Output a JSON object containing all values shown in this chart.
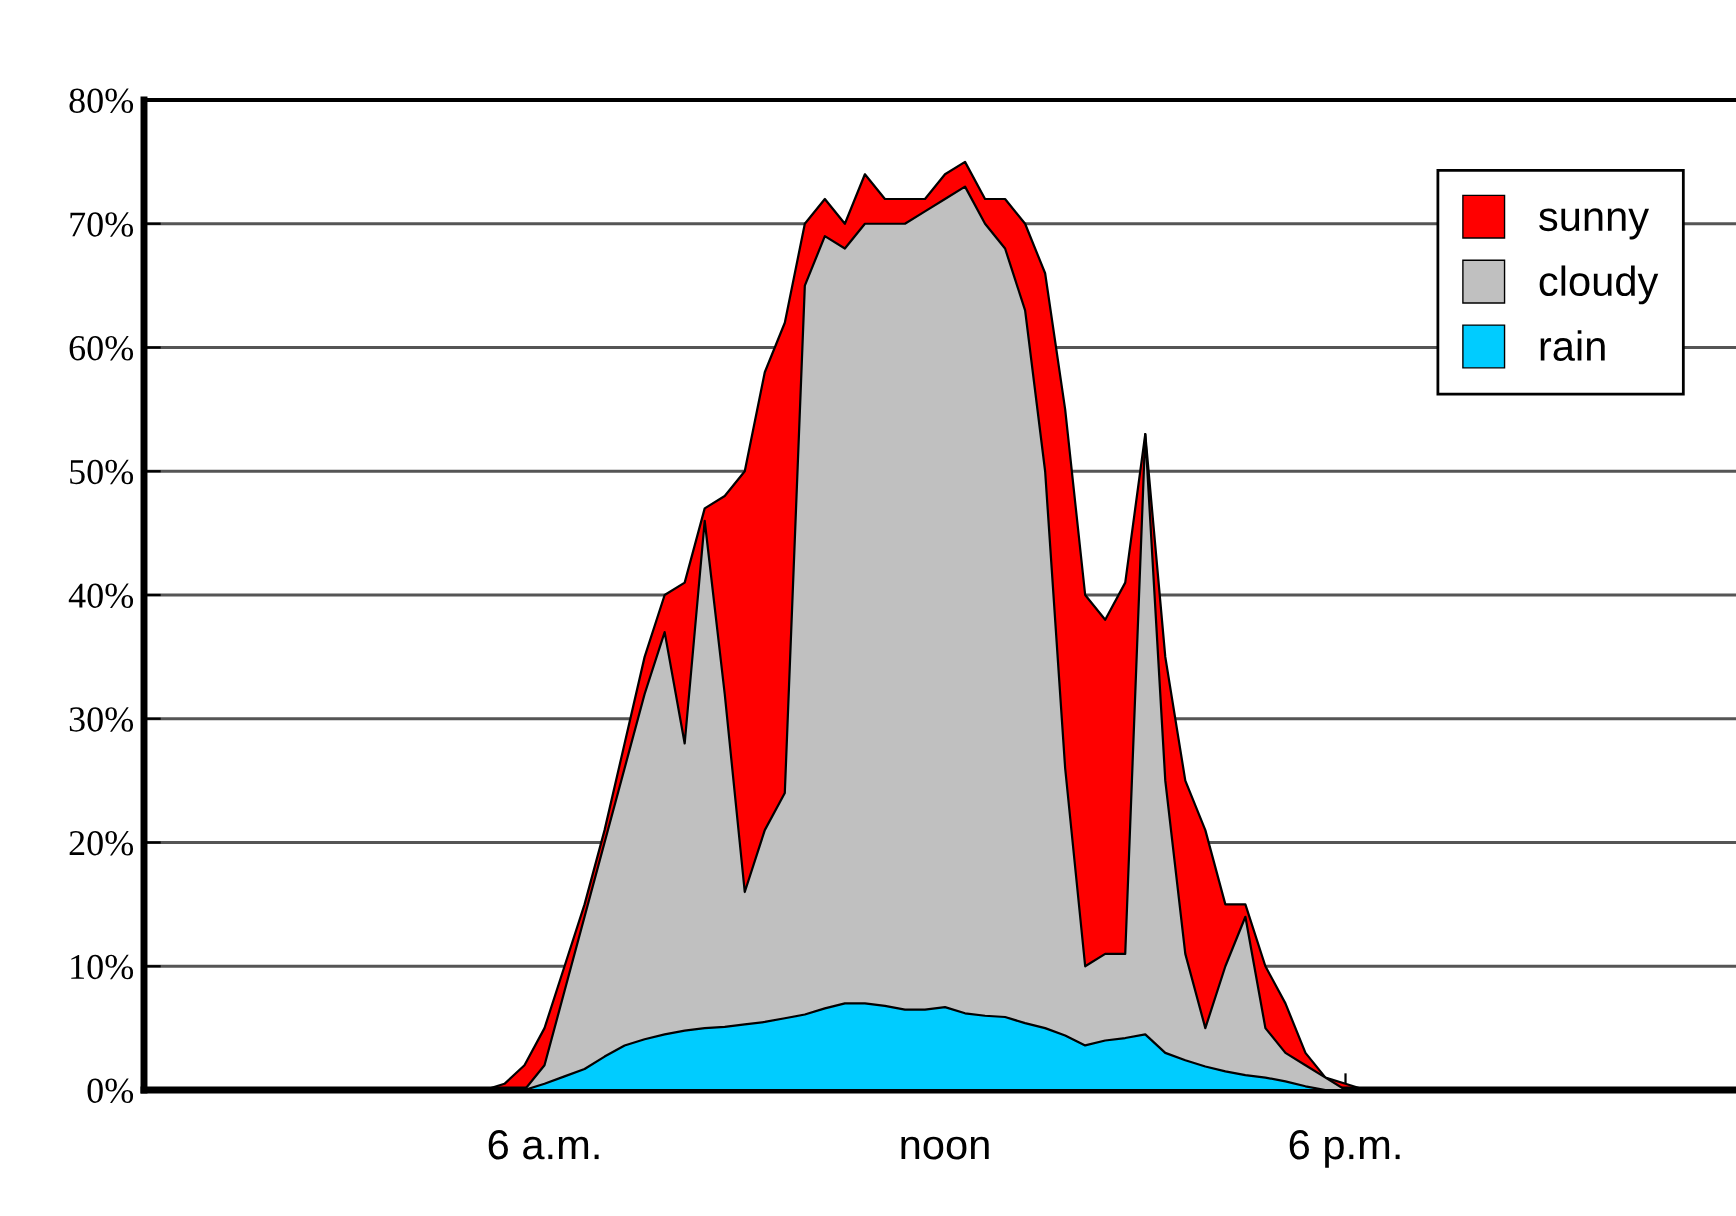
{
  "chart_data": {
    "type": "area",
    "categories": [
      null,
      null,
      null,
      null,
      null,
      null,
      null,
      null,
      null,
      null,
      null,
      null,
      null,
      null,
      null,
      null,
      null,
      null,
      null,
      null,
      "6 a.m.",
      null,
      null,
      null,
      null,
      null,
      null,
      null,
      null,
      null,
      null,
      null,
      null,
      null,
      null,
      null,
      null,
      null,
      null,
      null,
      "noon",
      null,
      null,
      null,
      null,
      null,
      null,
      null,
      null,
      null,
      null,
      null,
      null,
      null,
      null,
      null,
      null,
      null,
      null,
      null,
      "6 p.m.",
      null,
      null,
      null,
      null,
      null,
      null,
      null,
      null,
      null,
      null,
      null,
      null,
      null,
      null,
      null,
      null,
      null,
      null,
      null
    ],
    "series": [
      {
        "name": "sunny",
        "color": "#ff0000",
        "values": [
          0,
          0,
          0,
          0,
          0,
          0,
          0,
          0,
          0,
          0,
          0,
          0,
          0,
          0,
          0,
          0,
          0,
          0,
          0.5,
          2,
          5,
          10,
          15,
          21,
          28,
          35,
          40,
          41,
          47,
          48,
          50,
          58,
          62,
          70,
          72,
          70,
          74,
          72,
          72,
          72,
          74,
          75,
          72,
          72,
          70,
          66,
          55,
          40,
          38,
          41,
          53,
          35,
          25,
          21,
          15,
          15,
          10,
          7,
          3,
          1,
          0.5,
          0,
          0,
          0,
          0,
          0,
          0,
          0,
          0,
          0,
          0,
          0,
          0,
          0,
          0,
          0,
          0,
          0,
          0,
          0
        ]
      },
      {
        "name": "cloudy",
        "color": "#c0c0c0",
        "values": [
          0,
          0,
          0,
          0,
          0,
          0,
          0,
          0,
          0,
          0,
          0,
          0,
          0,
          0,
          0,
          0,
          0,
          0,
          0,
          0,
          2,
          8,
          14,
          20,
          26,
          32,
          37,
          28,
          46,
          32,
          16,
          21,
          24,
          65,
          69,
          68,
          70,
          70,
          70,
          71,
          72,
          73,
          70,
          68,
          63,
          50,
          26,
          10,
          11,
          11,
          53,
          25,
          11,
          5,
          10,
          14,
          5,
          3,
          2,
          1,
          0,
          0,
          0,
          0,
          0,
          0,
          0,
          0,
          0,
          0,
          0,
          0,
          0,
          0,
          0,
          0,
          0,
          0,
          0,
          0
        ]
      },
      {
        "name": "rain",
        "color": "#00ccff",
        "values": [
          0,
          0,
          0,
          0,
          0,
          0,
          0,
          0,
          0,
          0,
          0,
          0,
          0,
          0,
          0,
          0,
          0,
          0,
          0,
          0,
          0.5,
          1.1,
          1.7,
          2.7,
          3.6,
          4.1,
          4.5,
          4.8,
          5,
          5.1,
          5.3,
          5.5,
          5.8,
          6.1,
          6.6,
          7,
          7,
          6.8,
          6.5,
          6.5,
          6.7,
          6.2,
          6,
          5.9,
          5.4,
          5,
          4.4,
          3.6,
          4,
          4.2,
          4.5,
          3,
          2.4,
          1.9,
          1.5,
          1.2,
          1,
          0.7,
          0.3,
          0,
          0,
          0,
          0,
          0,
          0,
          0,
          0,
          0,
          0,
          0,
          0,
          0,
          0,
          0,
          0,
          0,
          0,
          0,
          0,
          0
        ]
      }
    ],
    "ylim": [
      0,
      80
    ],
    "yticks": [
      {
        "value": 0,
        "label": "0%"
      },
      {
        "value": 10,
        "label": "10%"
      },
      {
        "value": 20,
        "label": "20%"
      },
      {
        "value": 30,
        "label": "30%"
      },
      {
        "value": 40,
        "label": "40%"
      },
      {
        "value": 50,
        "label": "50%"
      },
      {
        "value": 60,
        "label": "60%"
      },
      {
        "value": 70,
        "label": "70%"
      },
      {
        "value": 80,
        "label": "80%"
      }
    ],
    "grid": "y",
    "legend": "top right"
  }
}
